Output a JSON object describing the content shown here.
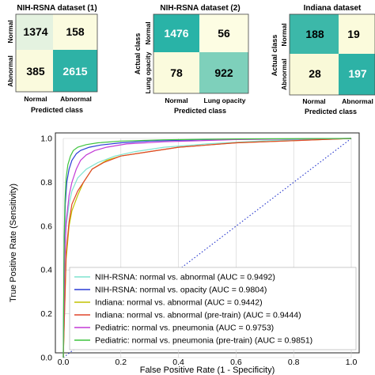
{
  "chart_data": [
    {
      "type": "heatmap",
      "title": "NIH-RSNA dataset (1)",
      "xlabel": "Predicted class",
      "ylabel": "",
      "row_labels": [
        "Normal",
        "Abnormal"
      ],
      "col_labels": [
        "Normal",
        "Abnormal"
      ],
      "values": [
        [
          1374,
          158
        ],
        [
          385,
          2615
        ]
      ],
      "cell_colors": [
        [
          "#e4f2e0",
          "#fbfbdf"
        ],
        [
          "#fafadd",
          "#2eb2a6"
        ]
      ]
    },
    {
      "type": "heatmap",
      "title": "NIH-RSNA dataset (2)",
      "xlabel": "Predicted class",
      "ylabel": "Actual class",
      "row_labels": [
        "Normal",
        "Lung opacity"
      ],
      "col_labels": [
        "Normal",
        "Lung opacity"
      ],
      "values": [
        [
          1476,
          56
        ],
        [
          78,
          922
        ]
      ],
      "cell_colors": [
        [
          "#29b3a7",
          "#fdfde3"
        ],
        [
          "#fbfbdd",
          "#7ed0bb"
        ]
      ]
    },
    {
      "type": "heatmap",
      "title": "Indiana dataset",
      "xlabel": "Predicted class",
      "ylabel": "Actual class",
      "row_labels": [
        "Normal",
        "Abnormal"
      ],
      "col_labels": [
        "Normal",
        "Abnormal"
      ],
      "values": [
        [
          188,
          19
        ],
        [
          28,
          197
        ]
      ],
      "cell_colors": [
        [
          "#3cb8a9",
          "#fbfbdc"
        ],
        [
          "#f9f9d8",
          "#2db2a6"
        ]
      ]
    },
    {
      "type": "line",
      "title": "",
      "xlabel": "False Positive Rate (1 - Specificity)",
      "ylabel": "True Positive Rate (Sensitivity)",
      "xlim": [
        0,
        1
      ],
      "ylim": [
        0,
        1
      ],
      "xticks": [
        "0.0",
        "0.2",
        "0.4",
        "0.6",
        "0.8",
        "1.0"
      ],
      "yticks": [
        "0.0",
        "0.2",
        "0.4",
        "0.6",
        "0.8",
        "1.0"
      ],
      "legend_position": "bottom-right",
      "diagonal": {
        "x": [
          0,
          1
        ],
        "y": [
          0,
          1
        ],
        "color": "#2233cc",
        "style": "dotted"
      },
      "series": [
        {
          "name": "NIH-RSNA: normal vs. abnormal (AUC = 0.9492)",
          "color": "#7fe3cf",
          "x": [
            0,
            0.005,
            0.01,
            0.02,
            0.03,
            0.05,
            0.08,
            0.12,
            0.18,
            0.25,
            0.35,
            0.5,
            0.7,
            1.0
          ],
          "y": [
            0,
            0.45,
            0.6,
            0.7,
            0.76,
            0.82,
            0.86,
            0.89,
            0.92,
            0.94,
            0.96,
            0.975,
            0.99,
            1.0
          ]
        },
        {
          "name": "NIH-RSNA: normal vs. opacity (AUC = 0.9804)",
          "color": "#2a3cd6",
          "x": [
            0,
            0.003,
            0.007,
            0.012,
            0.02,
            0.03,
            0.045,
            0.06,
            0.09,
            0.13,
            0.2,
            0.3,
            0.5,
            1.0
          ],
          "y": [
            0,
            0.5,
            0.7,
            0.8,
            0.86,
            0.9,
            0.93,
            0.945,
            0.96,
            0.97,
            0.98,
            0.988,
            0.995,
            1.0
          ]
        },
        {
          "name": "Indiana: normal vs. abnormal (AUC = 0.9442)",
          "color": "#c2c200",
          "x": [
            0,
            0.01,
            0.02,
            0.03,
            0.05,
            0.07,
            0.1,
            0.15,
            0.2,
            0.3,
            0.4,
            0.6,
            0.8,
            1.0
          ],
          "y": [
            0,
            0.45,
            0.6,
            0.67,
            0.74,
            0.8,
            0.86,
            0.9,
            0.92,
            0.94,
            0.96,
            0.98,
            0.99,
            1.0
          ]
        },
        {
          "name": "Indiana: normal vs. abnormal (pre-train) (AUC = 0.9444)",
          "color": "#e0452a",
          "x": [
            0,
            0.01,
            0.02,
            0.03,
            0.05,
            0.08,
            0.1,
            0.14,
            0.2,
            0.3,
            0.4,
            0.6,
            0.8,
            1.0
          ],
          "y": [
            0,
            0.48,
            0.62,
            0.7,
            0.76,
            0.82,
            0.86,
            0.89,
            0.92,
            0.94,
            0.96,
            0.98,
            0.99,
            1.0
          ]
        },
        {
          "name": "Pediatric: normal vs. pneumonia (AUC = 0.9753)",
          "color": "#c23ad6",
          "x": [
            0,
            0.005,
            0.01,
            0.02,
            0.03,
            0.045,
            0.06,
            0.08,
            0.11,
            0.15,
            0.22,
            0.35,
            0.6,
            1.0
          ],
          "y": [
            0,
            0.45,
            0.62,
            0.74,
            0.8,
            0.86,
            0.9,
            0.925,
            0.945,
            0.96,
            0.975,
            0.985,
            0.995,
            1.0
          ]
        },
        {
          "name": "Pediatric: normal vs. pneumonia (pre-train) (AUC = 0.9851)",
          "color": "#3ec43e",
          "x": [
            0,
            0.003,
            0.006,
            0.01,
            0.016,
            0.025,
            0.035,
            0.05,
            0.08,
            0.12,
            0.2,
            0.35,
            0.6,
            1.0
          ],
          "y": [
            0,
            0.55,
            0.72,
            0.82,
            0.88,
            0.92,
            0.945,
            0.96,
            0.972,
            0.98,
            0.988,
            0.994,
            0.998,
            1.0
          ]
        }
      ]
    }
  ]
}
